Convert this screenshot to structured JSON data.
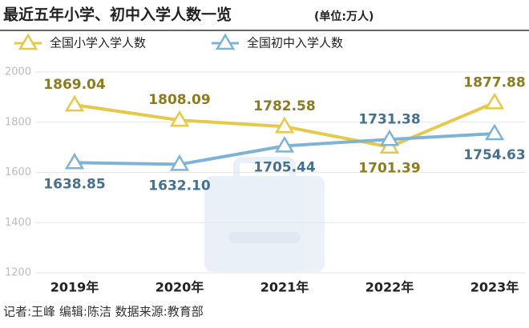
{
  "chart_data": {
    "type": "line",
    "title": "最近五年小学、初中入学人数一览",
    "unit": "(单位:万人)",
    "categories": [
      "2019年",
      "2020年",
      "2021年",
      "2022年",
      "2023年"
    ],
    "series": [
      {
        "name": "全国小学入学人数",
        "color": "#e6c84a",
        "label_color": "#8c7b1f",
        "values": [
          1869.04,
          1808.09,
          1782.58,
          1701.39,
          1877.88
        ],
        "value_labels": [
          "1869.04",
          "1808.09",
          "1782.58",
          "1701.39",
          "1877.88"
        ]
      },
      {
        "name": "全国初中入学人数",
        "color": "#7fb3d5",
        "label_color": "#46708f",
        "values": [
          1638.85,
          1632.1,
          1705.44,
          1731.38,
          1754.63
        ],
        "value_labels": [
          "1638.85",
          "1632.10",
          "1705.44",
          "1731.38",
          "1754.63"
        ]
      }
    ],
    "ylim": [
      1200,
      2000
    ],
    "yticks": [
      1200,
      1400,
      1600,
      1800,
      2000
    ],
    "grid": true,
    "footer": "记者:王峰   编辑:陈洁   数据来源:教育部"
  }
}
